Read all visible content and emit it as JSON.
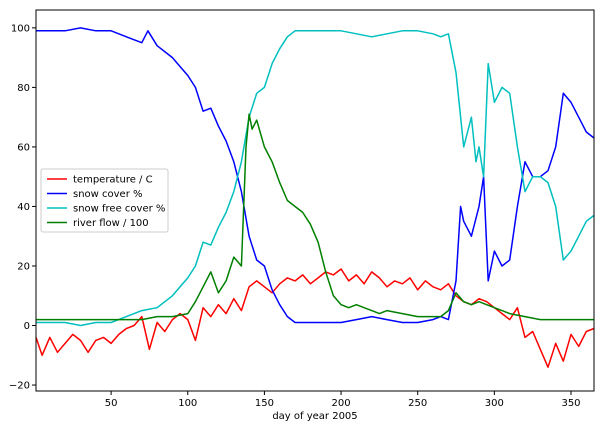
{
  "chart_data": {
    "type": "line",
    "title": "",
    "xlabel": "day of year 2005",
    "ylabel": "",
    "xlim": [
      1,
      365
    ],
    "ylim": [
      -22,
      106
    ],
    "xticks": [
      50,
      100,
      150,
      200,
      250,
      300,
      350
    ],
    "yticks": [
      -20,
      0,
      20,
      40,
      60,
      80,
      100
    ],
    "ytick_labels": [
      "−20",
      "0",
      "20",
      "40",
      "60",
      "80",
      "100"
    ],
    "grid": false,
    "legend_position": "center-left",
    "series": [
      {
        "name": "temperature / C",
        "color": "#ff0000",
        "points": [
          [
            1,
            -4
          ],
          [
            5,
            -10
          ],
          [
            10,
            -4
          ],
          [
            15,
            -9
          ],
          [
            20,
            -6
          ],
          [
            25,
            -3
          ],
          [
            30,
            -5
          ],
          [
            35,
            -9
          ],
          [
            40,
            -5
          ],
          [
            45,
            -4
          ],
          [
            50,
            -6
          ],
          [
            55,
            -3
          ],
          [
            60,
            -1
          ],
          [
            65,
            0
          ],
          [
            70,
            3
          ],
          [
            75,
            -8
          ],
          [
            80,
            1
          ],
          [
            85,
            -2
          ],
          [
            90,
            2
          ],
          [
            95,
            4
          ],
          [
            100,
            2
          ],
          [
            105,
            -5
          ],
          [
            110,
            6
          ],
          [
            115,
            3
          ],
          [
            120,
            7
          ],
          [
            125,
            4
          ],
          [
            130,
            9
          ],
          [
            135,
            5
          ],
          [
            140,
            13
          ],
          [
            145,
            15
          ],
          [
            150,
            13
          ],
          [
            155,
            11
          ],
          [
            160,
            14
          ],
          [
            165,
            16
          ],
          [
            170,
            15
          ],
          [
            175,
            17
          ],
          [
            180,
            14
          ],
          [
            185,
            16
          ],
          [
            190,
            18
          ],
          [
            195,
            17
          ],
          [
            200,
            19
          ],
          [
            205,
            15
          ],
          [
            210,
            17
          ],
          [
            215,
            14
          ],
          [
            220,
            18
          ],
          [
            225,
            16
          ],
          [
            230,
            13
          ],
          [
            235,
            15
          ],
          [
            240,
            14
          ],
          [
            245,
            16
          ],
          [
            250,
            12
          ],
          [
            255,
            15
          ],
          [
            260,
            13
          ],
          [
            265,
            12
          ],
          [
            270,
            14
          ],
          [
            275,
            10
          ],
          [
            280,
            8
          ],
          [
            285,
            7
          ],
          [
            290,
            9
          ],
          [
            295,
            8
          ],
          [
            300,
            6
          ],
          [
            305,
            4
          ],
          [
            310,
            2
          ],
          [
            315,
            6
          ],
          [
            320,
            -4
          ],
          [
            325,
            -2
          ],
          [
            330,
            -8
          ],
          [
            335,
            -14
          ],
          [
            340,
            -6
          ],
          [
            345,
            -12
          ],
          [
            350,
            -3
          ],
          [
            355,
            -7
          ],
          [
            360,
            -2
          ],
          [
            365,
            -1
          ]
        ]
      },
      {
        "name": "snow cover %",
        "color": "#0000ff",
        "points": [
          [
            1,
            99
          ],
          [
            10,
            99
          ],
          [
            20,
            99
          ],
          [
            30,
            100
          ],
          [
            40,
            99
          ],
          [
            50,
            99
          ],
          [
            60,
            97
          ],
          [
            70,
            95
          ],
          [
            74,
            99
          ],
          [
            80,
            94
          ],
          [
            90,
            90
          ],
          [
            95,
            87
          ],
          [
            100,
            84
          ],
          [
            105,
            80
          ],
          [
            110,
            72
          ],
          [
            115,
            73
          ],
          [
            120,
            67
          ],
          [
            125,
            62
          ],
          [
            130,
            55
          ],
          [
            135,
            45
          ],
          [
            140,
            30
          ],
          [
            145,
            22
          ],
          [
            150,
            20
          ],
          [
            155,
            12
          ],
          [
            160,
            7
          ],
          [
            165,
            3
          ],
          [
            170,
            1
          ],
          [
            180,
            1
          ],
          [
            190,
            1
          ],
          [
            200,
            1
          ],
          [
            210,
            2
          ],
          [
            220,
            3
          ],
          [
            230,
            2
          ],
          [
            240,
            1
          ],
          [
            250,
            1
          ],
          [
            260,
            2
          ],
          [
            265,
            3
          ],
          [
            270,
            2
          ],
          [
            275,
            15
          ],
          [
            278,
            40
          ],
          [
            280,
            35
          ],
          [
            285,
            30
          ],
          [
            290,
            40
          ],
          [
            293,
            50
          ],
          [
            296,
            15
          ],
          [
            300,
            25
          ],
          [
            305,
            20
          ],
          [
            310,
            22
          ],
          [
            315,
            40
          ],
          [
            320,
            55
          ],
          [
            325,
            50
          ],
          [
            330,
            50
          ],
          [
            335,
            52
          ],
          [
            340,
            60
          ],
          [
            345,
            78
          ],
          [
            350,
            75
          ],
          [
            355,
            70
          ],
          [
            360,
            65
          ],
          [
            365,
            63
          ]
        ]
      },
      {
        "name": "snow free cover %",
        "color": "#00bfbf",
        "points": [
          [
            1,
            1
          ],
          [
            10,
            1
          ],
          [
            20,
            1
          ],
          [
            30,
            0
          ],
          [
            40,
            1
          ],
          [
            50,
            1
          ],
          [
            60,
            3
          ],
          [
            70,
            5
          ],
          [
            80,
            6
          ],
          [
            90,
            10
          ],
          [
            95,
            13
          ],
          [
            100,
            16
          ],
          [
            105,
            20
          ],
          [
            110,
            28
          ],
          [
            115,
            27
          ],
          [
            120,
            33
          ],
          [
            125,
            38
          ],
          [
            130,
            45
          ],
          [
            135,
            55
          ],
          [
            140,
            70
          ],
          [
            145,
            78
          ],
          [
            150,
            80
          ],
          [
            155,
            88
          ],
          [
            160,
            93
          ],
          [
            165,
            97
          ],
          [
            170,
            99
          ],
          [
            180,
            99
          ],
          [
            190,
            99
          ],
          [
            200,
            99
          ],
          [
            210,
            98
          ],
          [
            220,
            97
          ],
          [
            230,
            98
          ],
          [
            240,
            99
          ],
          [
            250,
            99
          ],
          [
            260,
            98
          ],
          [
            265,
            97
          ],
          [
            270,
            98
          ],
          [
            275,
            85
          ],
          [
            280,
            60
          ],
          [
            285,
            70
          ],
          [
            288,
            55
          ],
          [
            290,
            60
          ],
          [
            293,
            50
          ],
          [
            296,
            88
          ],
          [
            300,
            75
          ],
          [
            305,
            80
          ],
          [
            310,
            78
          ],
          [
            315,
            60
          ],
          [
            320,
            45
          ],
          [
            325,
            50
          ],
          [
            330,
            50
          ],
          [
            335,
            48
          ],
          [
            340,
            40
          ],
          [
            345,
            22
          ],
          [
            350,
            25
          ],
          [
            355,
            30
          ],
          [
            360,
            35
          ],
          [
            365,
            37
          ]
        ]
      },
      {
        "name": "river flow / 100",
        "color": "#008000",
        "points": [
          [
            1,
            2
          ],
          [
            10,
            2
          ],
          [
            20,
            2
          ],
          [
            30,
            2
          ],
          [
            40,
            2
          ],
          [
            50,
            2
          ],
          [
            60,
            2
          ],
          [
            70,
            2
          ],
          [
            80,
            3
          ],
          [
            90,
            3
          ],
          [
            100,
            4
          ],
          [
            105,
            8
          ],
          [
            110,
            13
          ],
          [
            115,
            18
          ],
          [
            120,
            11
          ],
          [
            125,
            15
          ],
          [
            130,
            23
          ],
          [
            135,
            20
          ],
          [
            138,
            60
          ],
          [
            140,
            71
          ],
          [
            142,
            66
          ],
          [
            145,
            69
          ],
          [
            150,
            60
          ],
          [
            155,
            55
          ],
          [
            160,
            48
          ],
          [
            165,
            42
          ],
          [
            170,
            40
          ],
          [
            175,
            38
          ],
          [
            180,
            34
          ],
          [
            185,
            28
          ],
          [
            190,
            18
          ],
          [
            195,
            10
          ],
          [
            200,
            7
          ],
          [
            205,
            6
          ],
          [
            210,
            7
          ],
          [
            215,
            6
          ],
          [
            220,
            5
          ],
          [
            225,
            4
          ],
          [
            230,
            5
          ],
          [
            240,
            4
          ],
          [
            250,
            3
          ],
          [
            260,
            3
          ],
          [
            265,
            3
          ],
          [
            270,
            5
          ],
          [
            275,
            11
          ],
          [
            280,
            8
          ],
          [
            285,
            7
          ],
          [
            290,
            8
          ],
          [
            295,
            7
          ],
          [
            300,
            6
          ],
          [
            305,
            5
          ],
          [
            310,
            4
          ],
          [
            320,
            3
          ],
          [
            330,
            2
          ],
          [
            340,
            2
          ],
          [
            350,
            2
          ],
          [
            360,
            2
          ],
          [
            365,
            2
          ]
        ]
      }
    ]
  }
}
